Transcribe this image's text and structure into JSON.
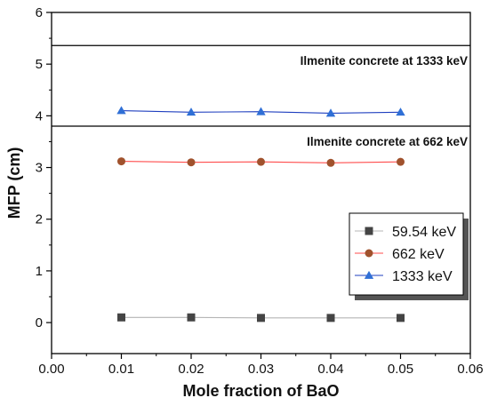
{
  "chart_data": {
    "type": "line",
    "xlabel": "Mole fraction of BaO",
    "ylabel": "MFP (cm)",
    "xlim": [
      0.0,
      0.06
    ],
    "ylim": [
      -0.6,
      6
    ],
    "x_ticks": [
      "0.00",
      "0.01",
      "0.02",
      "0.03",
      "0.04",
      "0.05",
      "0.06"
    ],
    "y_ticks": [
      "0",
      "1",
      "2",
      "3",
      "4",
      "5",
      "6"
    ],
    "x": [
      0.01,
      0.02,
      0.03,
      0.04,
      0.05
    ],
    "series": [
      {
        "name": "59.54 keV",
        "marker": "square",
        "color": "#444444",
        "line_color": "#b5b5b5",
        "values": [
          0.1,
          0.1,
          0.09,
          0.09,
          0.09
        ]
      },
      {
        "name": "662 keV",
        "marker": "circle",
        "color": "#a0522d",
        "line_color": "#ff4d4d",
        "values": [
          3.12,
          3.1,
          3.11,
          3.09,
          3.11
        ]
      },
      {
        "name": "1333 keV",
        "marker": "triangle",
        "color": "#2f6fd6",
        "line_color": "#1f3fbf",
        "values": [
          4.1,
          4.07,
          4.08,
          4.05,
          4.07
        ]
      }
    ],
    "reference_lines": [
      {
        "y": 5.36,
        "label": "Ilmenite concrete at 1333 keV"
      },
      {
        "y": 3.8,
        "label": "Ilmenite concrete at 662 keV"
      }
    ],
    "legend_position": "right-middle",
    "grid": false
  }
}
